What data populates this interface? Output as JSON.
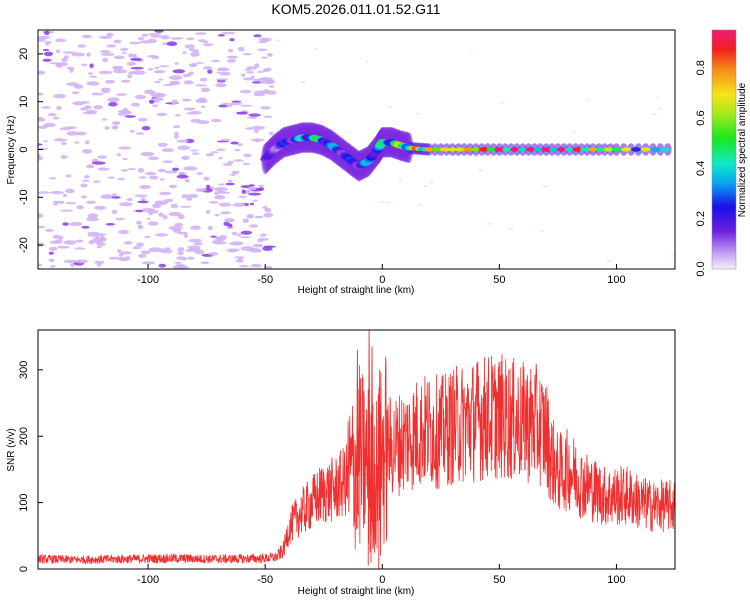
{
  "title": "KOM5.2026.011.01.52.G11",
  "chart_data": [
    {
      "type": "heatmap",
      "xlabel": "Height of straight line (km)",
      "ylabel": "Frequency (Hz)",
      "xlim": [
        -147,
        125
      ],
      "ylim": [
        -25,
        25
      ],
      "xticks": [
        -100,
        -50,
        0,
        50,
        100
      ],
      "yticks": [
        -20,
        -10,
        0,
        10,
        20
      ],
      "colorbar": {
        "label": "Normalized spectral amplitude",
        "range": [
          0,
          0.95
        ],
        "ticks": [
          0.0,
          0.2,
          0.4,
          0.6,
          0.8
        ]
      },
      "signal_trace": {
        "x": [
          -50,
          -46,
          -42,
          -38,
          -34,
          -30,
          -26,
          -22,
          -18,
          -14,
          -10,
          -6,
          -2,
          0,
          4,
          8,
          12,
          20,
          40,
          60,
          80,
          100,
          125
        ],
        "freq": [
          -2,
          0,
          1.5,
          2,
          2.5,
          2.5,
          2,
          1,
          -0.5,
          -2,
          -3.5,
          -2.5,
          0,
          1.5,
          1.5,
          0.8,
          0.3,
          0,
          0,
          0,
          0,
          0,
          0
        ],
        "amplitude": [
          0.15,
          0.2,
          0.25,
          0.3,
          0.4,
          0.5,
          0.45,
          0.35,
          0.3,
          0.25,
          0.3,
          0.35,
          0.4,
          0.45,
          0.5,
          0.6,
          0.75,
          0.85,
          0.95,
          0.95,
          0.9,
          0.7,
          0.55
        ]
      }
    },
    {
      "type": "line",
      "xlabel": "Height of straight line (km)",
      "ylabel": "SNR (v/v)",
      "xlim": [
        -147,
        125
      ],
      "ylim": [
        0,
        360
      ],
      "xticks": [
        -100,
        -50,
        0,
        50,
        100
      ],
      "yticks": [
        0,
        100,
        200,
        300
      ],
      "line_color": "#f03030",
      "series": [
        {
          "x": [
            -147,
            -130,
            -110,
            -90,
            -70,
            -50,
            -45,
            -42,
            -40,
            -36,
            -30,
            -25,
            -20,
            -15,
            -12,
            -10,
            -8,
            -5,
            -3,
            -2,
            0,
            2,
            5,
            10,
            15,
            20,
            25,
            30,
            35,
            40,
            45,
            50,
            55,
            60,
            65,
            70,
            72,
            75,
            80,
            85,
            90,
            95,
            100,
            105,
            110,
            115,
            120,
            125
          ],
          "values": [
            15,
            14,
            15,
            16,
            15,
            16,
            18,
            30,
            60,
            80,
            100,
            115,
            120,
            135,
            150,
            170,
            160,
            150,
            140,
            150,
            170,
            185,
            185,
            195,
            205,
            210,
            205,
            215,
            220,
            225,
            230,
            230,
            225,
            220,
            220,
            205,
            170,
            145,
            150,
            130,
            120,
            110,
            110,
            110,
            100,
            95,
            95,
            95
          ]
        }
      ]
    }
  ]
}
